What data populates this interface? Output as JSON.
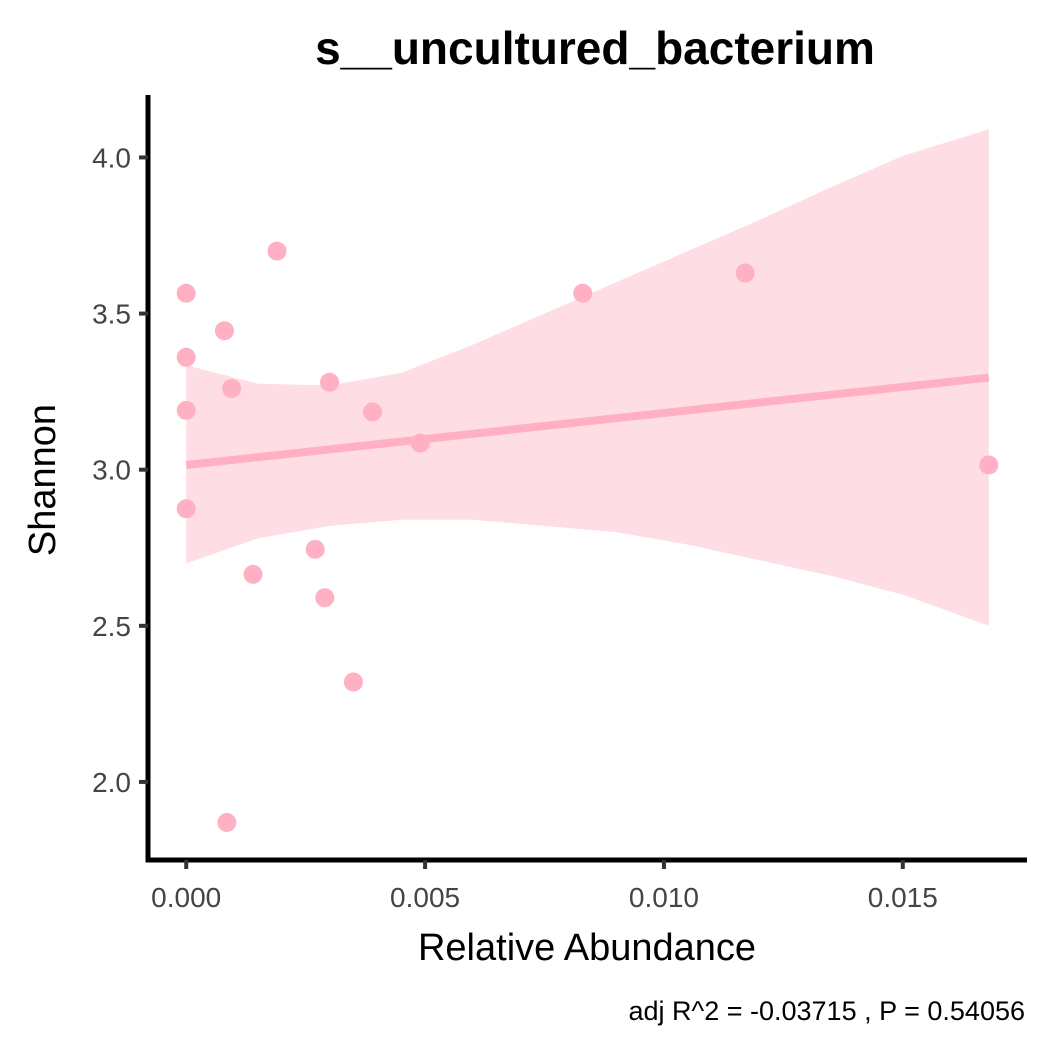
{
  "chart_data": {
    "type": "scatter",
    "title": "s__uncultured_bacterium",
    "xlabel": "Relative Abundance",
    "ylabel": "Shannon",
    "xlim": [
      -0.0008,
      0.0176
    ],
    "ylim": [
      1.75,
      4.2
    ],
    "x_ticks": [
      0.0,
      0.005,
      0.01,
      0.015
    ],
    "x_tick_labels": [
      "0.000",
      "0.005",
      "0.010",
      "0.015"
    ],
    "y_ticks": [
      2.0,
      2.5,
      3.0,
      3.5,
      4.0
    ],
    "y_tick_labels": [
      "2.0",
      "2.5",
      "3.0",
      "3.5",
      "4.0"
    ],
    "grid": false,
    "caption": "adj R^2 =  -0.03715 , P = 0.54056",
    "colors": {
      "point": "#ffb0c3",
      "line": "#ffb0c3",
      "band": "#ffdde4",
      "axis": "#000000"
    },
    "points": [
      {
        "x": 0.0,
        "y": 3.565
      },
      {
        "x": 0.0,
        "y": 3.36
      },
      {
        "x": 0.0,
        "y": 3.19
      },
      {
        "x": 0.0,
        "y": 2.875
      },
      {
        "x": 0.0008,
        "y": 3.445
      },
      {
        "x": 0.00085,
        "y": 1.87
      },
      {
        "x": 0.00095,
        "y": 3.26
      },
      {
        "x": 0.0014,
        "y": 2.665
      },
      {
        "x": 0.0019,
        "y": 3.7
      },
      {
        "x": 0.0027,
        "y": 2.745
      },
      {
        "x": 0.0029,
        "y": 2.59
      },
      {
        "x": 0.003,
        "y": 3.28
      },
      {
        "x": 0.0035,
        "y": 2.32
      },
      {
        "x": 0.0039,
        "y": 3.185
      },
      {
        "x": 0.0049,
        "y": 3.085
      },
      {
        "x": 0.0083,
        "y": 3.565
      },
      {
        "x": 0.0117,
        "y": 3.63
      },
      {
        "x": 0.0168,
        "y": 3.015
      }
    ],
    "fit_line": {
      "x": [
        0.0,
        0.0168
      ],
      "y": [
        3.015,
        3.295
      ]
    },
    "confidence_band": {
      "x": [
        0.0,
        0.0015,
        0.003,
        0.0045,
        0.006,
        0.0075,
        0.009,
        0.0105,
        0.012,
        0.0135,
        0.015,
        0.0168
      ],
      "upper": [
        3.335,
        3.275,
        3.27,
        3.31,
        3.4,
        3.5,
        3.6,
        3.7,
        3.8,
        3.905,
        4.005,
        4.09
      ],
      "lower": [
        2.7,
        2.78,
        2.82,
        2.84,
        2.84,
        2.82,
        2.8,
        2.76,
        2.71,
        2.66,
        2.6,
        2.5
      ]
    }
  }
}
